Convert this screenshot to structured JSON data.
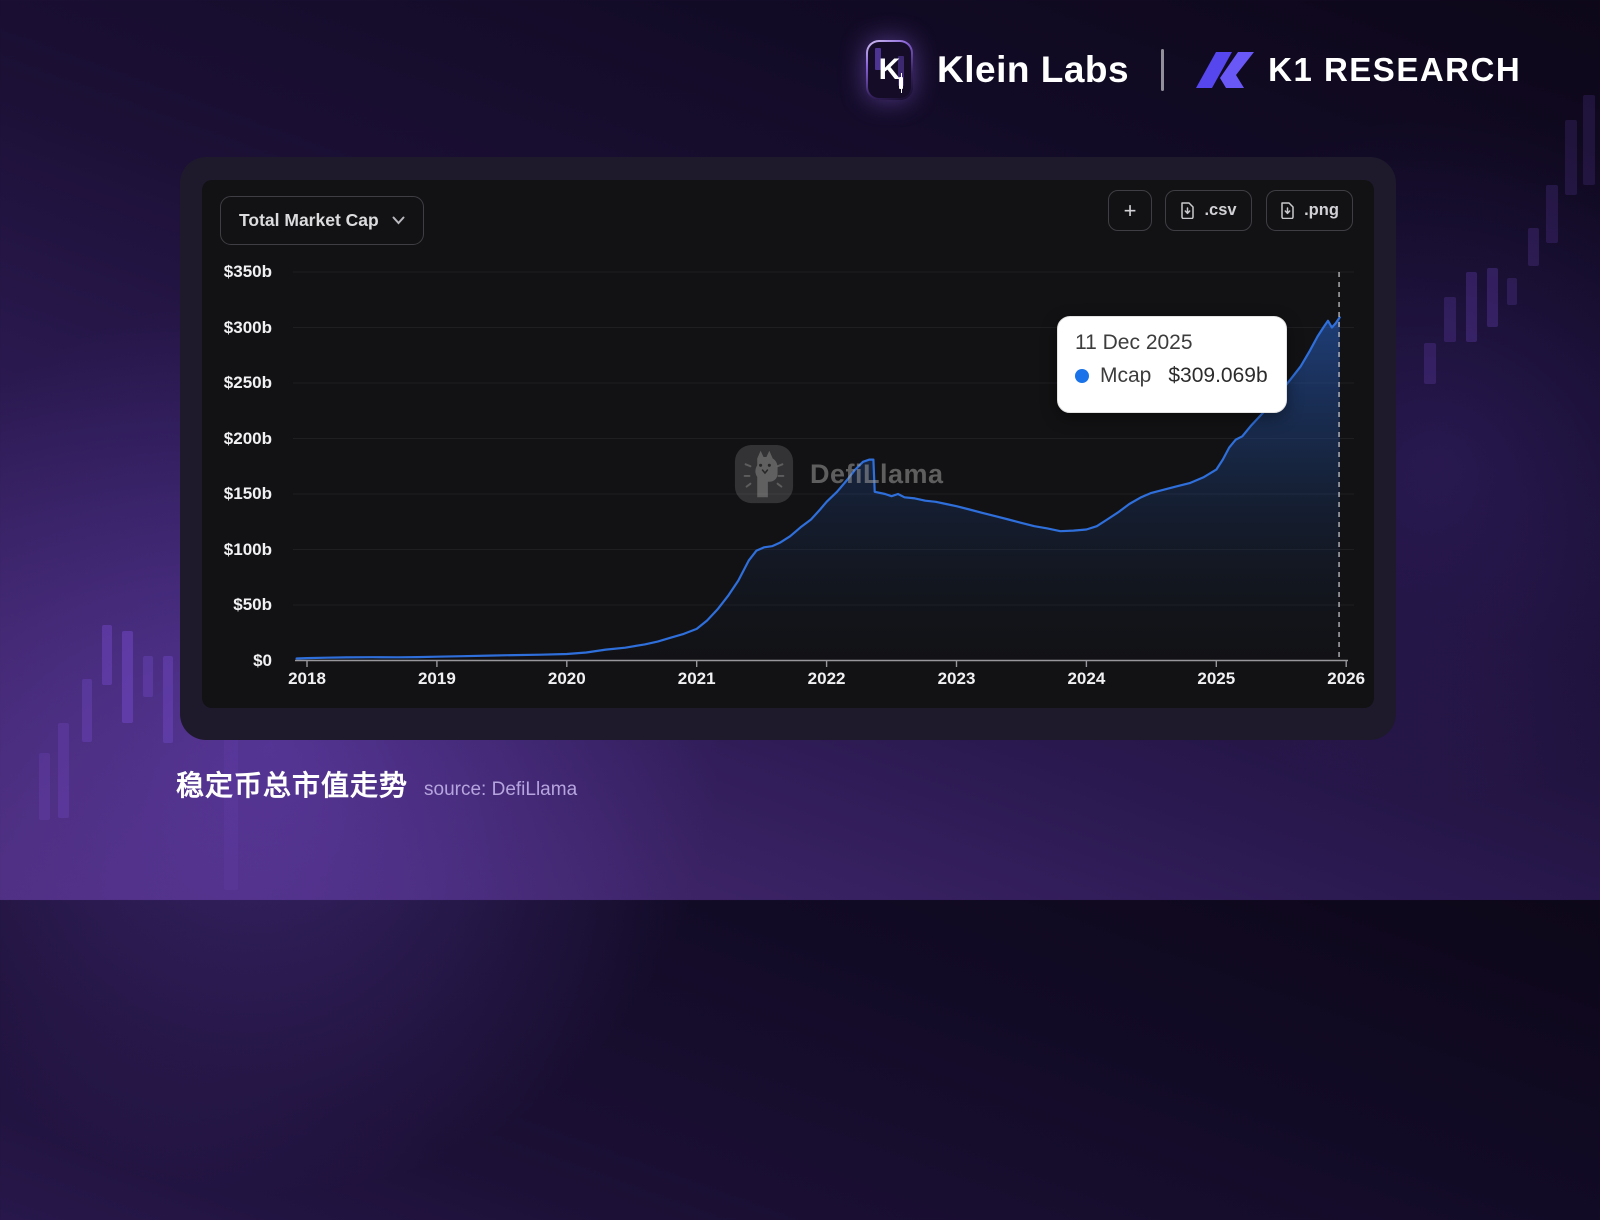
{
  "header": {
    "klein": {
      "logo_letter": "K",
      "name": "Klein Labs"
    },
    "divider": "|",
    "k1": {
      "name": "K1 RESEARCH"
    }
  },
  "card": {
    "selector": {
      "label": "Total Market Cap"
    },
    "add_button": {
      "label": "+"
    },
    "csv_button": {
      "label": ".csv"
    },
    "png_button": {
      "label": ".png"
    },
    "watermark": "DefiLlama",
    "tooltip": {
      "date": "11 Dec 2025",
      "series_label": "Mcap",
      "value": "$309.069b"
    }
  },
  "caption": {
    "title": "稳定币总市值走势",
    "source": "source: DefiLlama"
  },
  "colors": {
    "line": "#2f6fdb",
    "tooltip_dot": "#1a73e8",
    "axis": "#97979c",
    "background_accent": "#7c4fd8",
    "k1_brand": "#5646ee"
  },
  "chart_data": {
    "type": "area",
    "title": "Total Market Cap",
    "xlabel": "",
    "ylabel": "",
    "x_tick_labels": [
      "2018",
      "2019",
      "2020",
      "2021",
      "2022",
      "2023",
      "2024",
      "2025",
      "2026"
    ],
    "y_tick_labels": [
      "$350b",
      "$300b",
      "$250b",
      "$200b",
      "$150b",
      "$100b",
      "$50b",
      "$0"
    ],
    "y_tick_values": [
      350,
      300,
      250,
      200,
      150,
      100,
      50,
      0
    ],
    "ylim": [
      0,
      350
    ],
    "xlim_years": [
      2017.9,
      2026.05
    ],
    "grid": "horizontal-faint",
    "legend_position": "none",
    "marker_line_year": 2025.945,
    "highlight": {
      "date": "11 Dec 2025",
      "series": "Mcap",
      "value_billions": 309.069
    },
    "series": [
      {
        "name": "Mcap",
        "color": "#2f6fdb",
        "points_year_value_billions": [
          [
            2017.92,
            1.8
          ],
          [
            2018.0,
            2.2
          ],
          [
            2018.15,
            2.5
          ],
          [
            2018.3,
            2.8
          ],
          [
            2018.5,
            3.0
          ],
          [
            2018.7,
            2.9
          ],
          [
            2018.85,
            3.1
          ],
          [
            2019.0,
            3.4
          ],
          [
            2019.2,
            3.9
          ],
          [
            2019.4,
            4.4
          ],
          [
            2019.6,
            4.9
          ],
          [
            2019.8,
            5.2
          ],
          [
            2020.0,
            5.9
          ],
          [
            2020.15,
            7.2
          ],
          [
            2020.3,
            9.8
          ],
          [
            2020.45,
            11.5
          ],
          [
            2020.6,
            14.5
          ],
          [
            2020.7,
            17.0
          ],
          [
            2020.8,
            20.5
          ],
          [
            2020.9,
            24.0
          ],
          [
            2021.0,
            28.5
          ],
          [
            2021.08,
            36
          ],
          [
            2021.16,
            46
          ],
          [
            2021.24,
            58
          ],
          [
            2021.32,
            72
          ],
          [
            2021.4,
            90
          ],
          [
            2021.46,
            99
          ],
          [
            2021.52,
            102
          ],
          [
            2021.58,
            103
          ],
          [
            2021.64,
            106
          ],
          [
            2021.72,
            112
          ],
          [
            2021.8,
            120
          ],
          [
            2021.88,
            127
          ],
          [
            2021.95,
            136
          ],
          [
            2022.0,
            143
          ],
          [
            2022.08,
            152
          ],
          [
            2022.16,
            163
          ],
          [
            2022.22,
            172
          ],
          [
            2022.28,
            179
          ],
          [
            2022.33,
            181
          ],
          [
            2022.36,
            181
          ],
          [
            2022.37,
            152
          ],
          [
            2022.45,
            150
          ],
          [
            2022.5,
            148
          ],
          [
            2022.55,
            150
          ],
          [
            2022.6,
            147
          ],
          [
            2022.68,
            146
          ],
          [
            2022.76,
            144
          ],
          [
            2022.84,
            143
          ],
          [
            2022.92,
            141
          ],
          [
            2023.0,
            139
          ],
          [
            2023.1,
            136
          ],
          [
            2023.2,
            133
          ],
          [
            2023.3,
            130
          ],
          [
            2023.4,
            127
          ],
          [
            2023.5,
            124
          ],
          [
            2023.6,
            121
          ],
          [
            2023.7,
            119
          ],
          [
            2023.8,
            116.5
          ],
          [
            2023.9,
            117
          ],
          [
            2024.0,
            118
          ],
          [
            2024.08,
            121
          ],
          [
            2024.16,
            127
          ],
          [
            2024.25,
            134
          ],
          [
            2024.33,
            141
          ],
          [
            2024.42,
            147
          ],
          [
            2024.5,
            151
          ],
          [
            2024.6,
            154
          ],
          [
            2024.7,
            157
          ],
          [
            2024.8,
            160
          ],
          [
            2024.9,
            165
          ],
          [
            2025.0,
            172
          ],
          [
            2025.05,
            181
          ],
          [
            2025.1,
            192
          ],
          [
            2025.15,
            199
          ],
          [
            2025.2,
            202
          ],
          [
            2025.27,
            212
          ],
          [
            2025.35,
            222
          ],
          [
            2025.45,
            235
          ],
          [
            2025.55,
            250
          ],
          [
            2025.65,
            265
          ],
          [
            2025.72,
            279
          ],
          [
            2025.78,
            292
          ],
          [
            2025.83,
            301
          ],
          [
            2025.86,
            306
          ],
          [
            2025.89,
            300
          ],
          [
            2025.92,
            304
          ],
          [
            2025.95,
            309.069
          ]
        ]
      }
    ]
  }
}
